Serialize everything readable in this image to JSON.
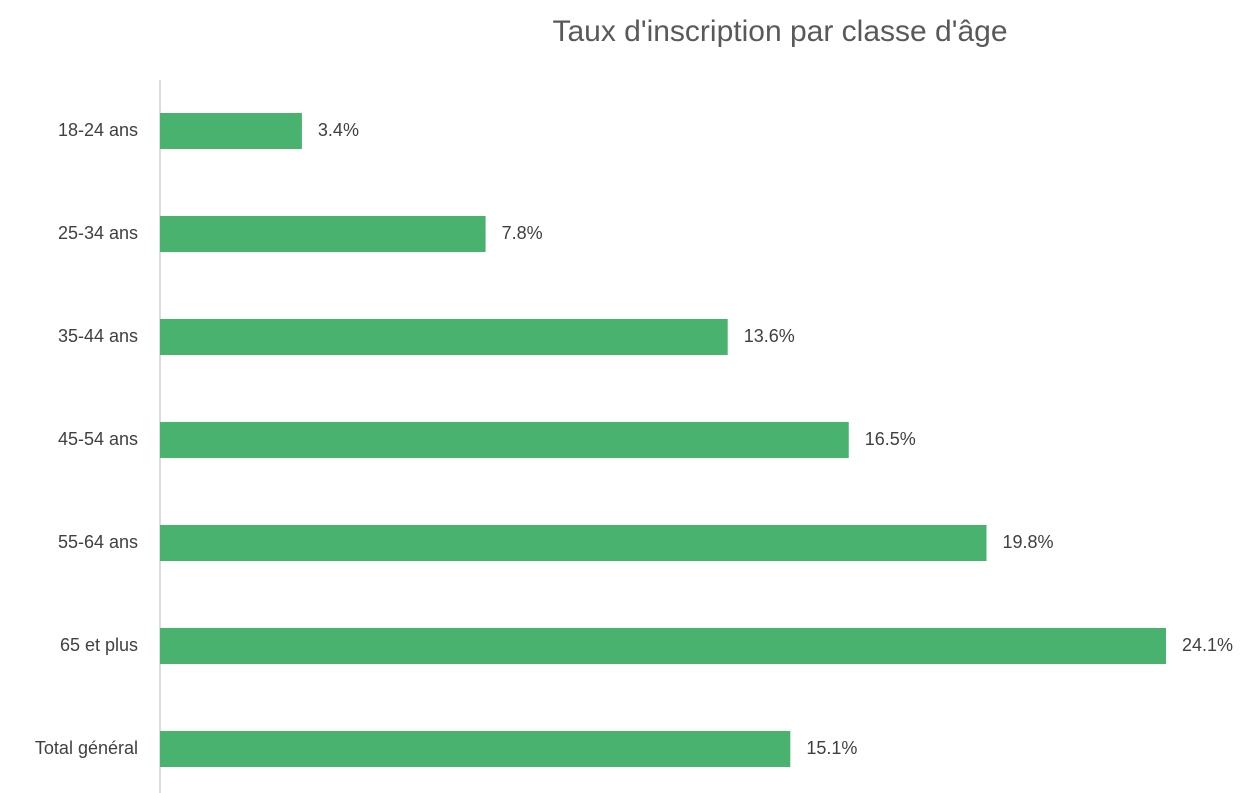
{
  "chart_data": {
    "type": "barh",
    "title": "Taux d'inscription par classe d'âge",
    "categories": [
      "18-24 ans",
      "25-34 ans",
      "35-44 ans",
      "45-54 ans",
      "55-64 ans",
      "65 et plus",
      "Total général"
    ],
    "values": [
      3.4,
      7.8,
      13.6,
      16.5,
      19.8,
      24.1,
      15.1
    ],
    "value_labels": [
      "3.4%",
      "7.8%",
      "13.6%",
      "16.5%",
      "19.8%",
      "24.1%",
      "15.1%"
    ],
    "color": "#4ab26f",
    "xlim": [
      0,
      24.1
    ]
  }
}
